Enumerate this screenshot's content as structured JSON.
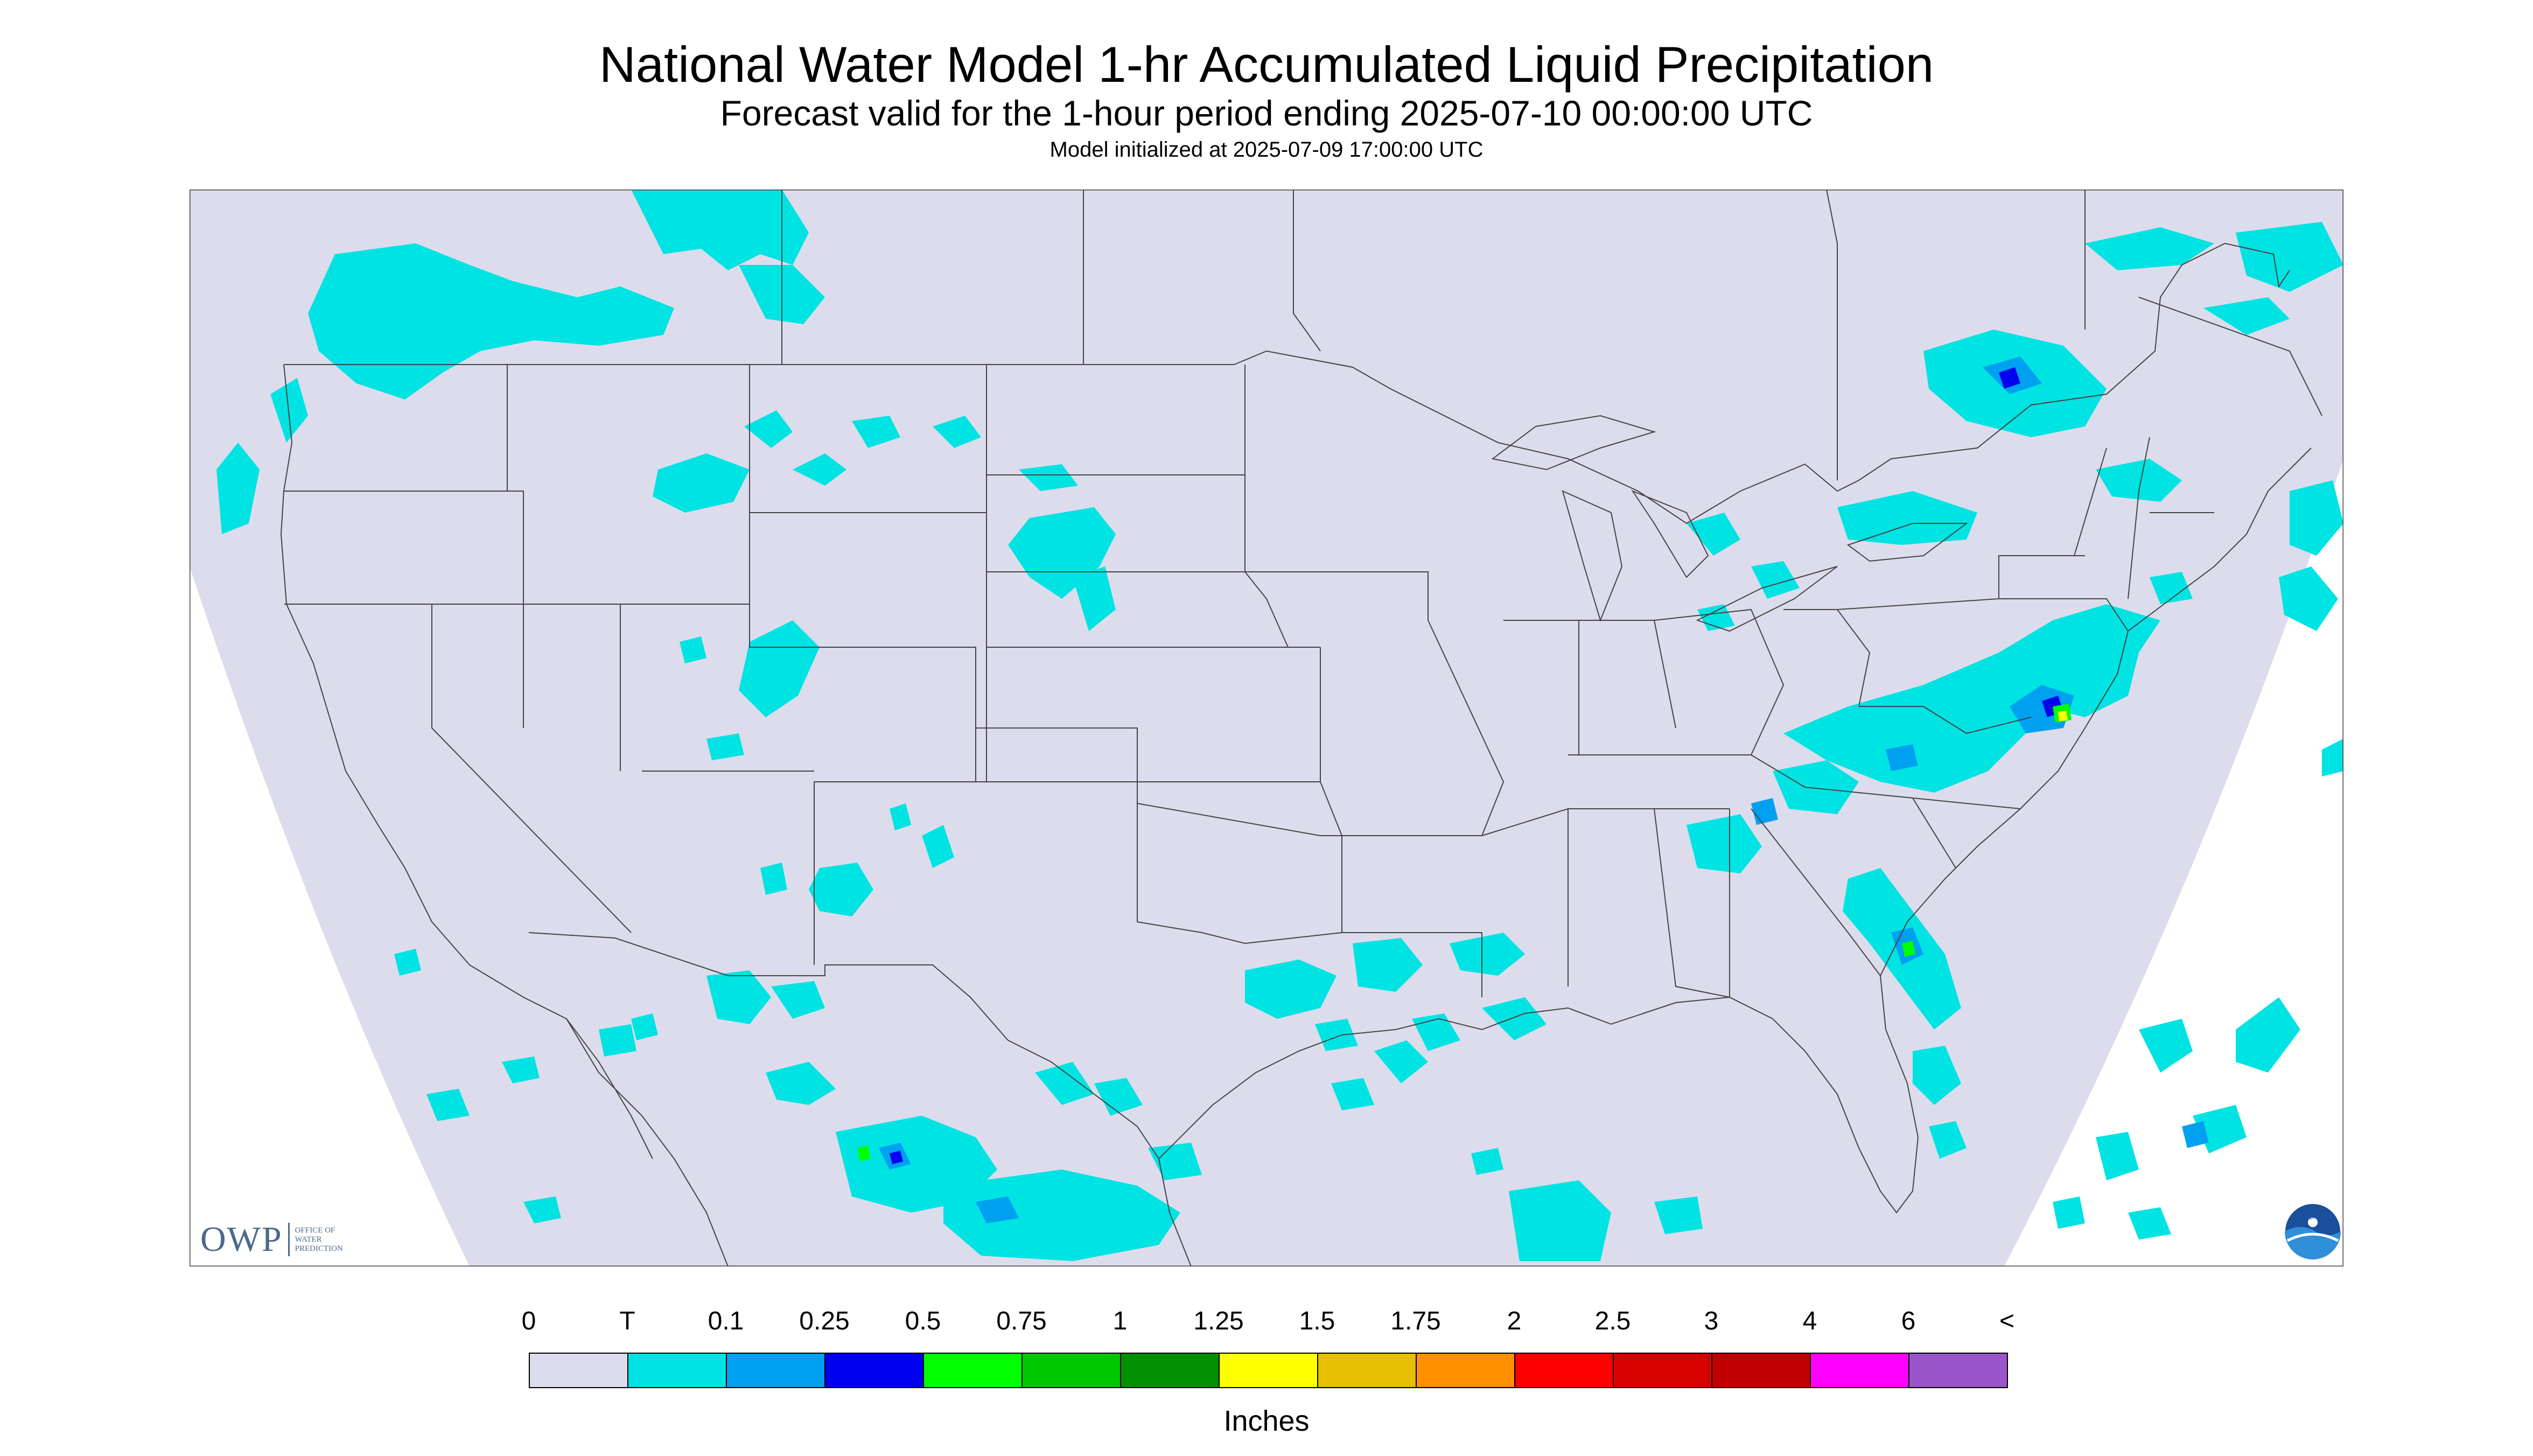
{
  "header": {
    "title": "National Water Model 1-hr Accumulated Liquid Precipitation",
    "subtitle": "Forecast valid for the 1-hour period ending 2025-07-10 00:00:00 UTC",
    "init_line": "Model initialized at 2025-07-09 17:00:00 UTC"
  },
  "map": {
    "background_color": "#dcdcec",
    "outside_color": "#ffffff",
    "border_color": "#444444",
    "regions": [
      "contiguous-united-states",
      "southern-canada",
      "northern-mexico",
      "gulf-of-mexico",
      "atlantic-ocean",
      "pacific-ocean"
    ]
  },
  "legend": {
    "tick_labels": [
      "0",
      "T",
      "0.1",
      "0.25",
      "0.5",
      "0.75",
      "1",
      "1.25",
      "1.5",
      "1.75",
      "2",
      "2.5",
      "3",
      "4",
      "6",
      "<"
    ],
    "colors": [
      "#dcdcec",
      "#00e3e3",
      "#00a0f0",
      "#0000f0",
      "#00ff00",
      "#00c800",
      "#009000",
      "#ffff00",
      "#e6c000",
      "#ff9000",
      "#ff0000",
      "#d60000",
      "#c00000",
      "#ff00ff",
      "#9955c9"
    ],
    "units": "Inches"
  },
  "logos": {
    "owp_mark": "OWP",
    "owp_text": [
      "OFFICE OF",
      "WATER",
      "PREDICTION"
    ],
    "noaa_mark": "NOAA"
  }
}
